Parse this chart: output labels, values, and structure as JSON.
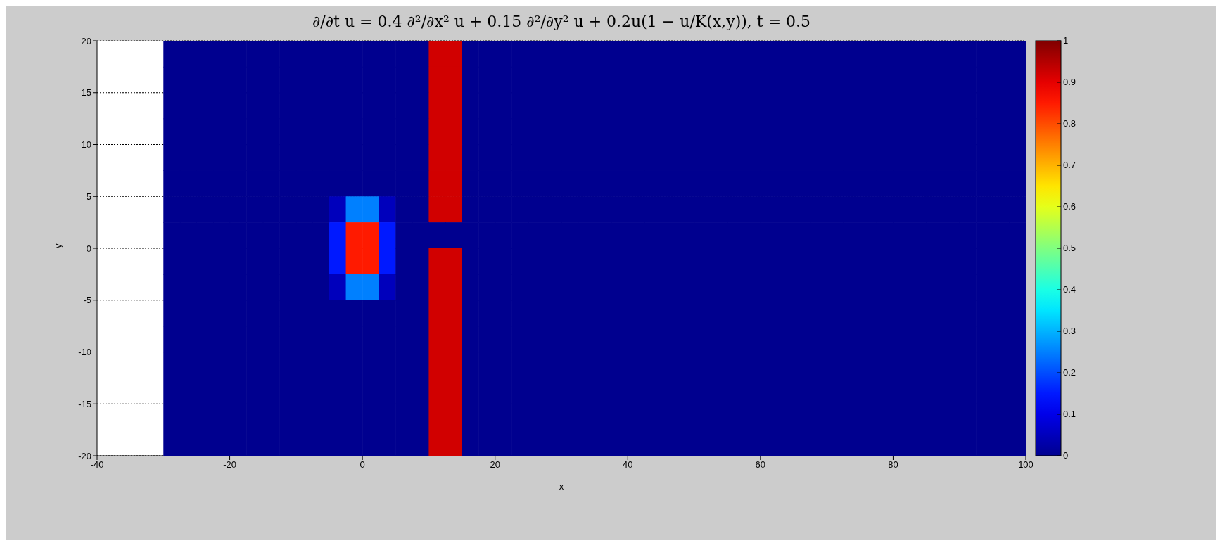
{
  "chart_data": {
    "type": "heatmap",
    "title": "∂/∂t u = 0.4 ∂²/∂x² u + 0.15 ∂²/∂y² u + 0.2u(1 − u/K(x,y)), t = 0.5",
    "xlabel": "x",
    "ylabel": "y",
    "x": [
      -28.75,
      -26.25,
      -23.75,
      -21.25,
      -18.75,
      -16.25,
      -13.75,
      -11.25,
      -8.75,
      -6.25,
      -3.75,
      -1.25,
      1.25,
      3.75,
      6.25,
      8.75,
      11.25,
      13.75,
      16.25,
      18.75,
      21.25,
      23.75,
      26.25,
      28.75,
      31.25,
      33.75,
      36.25,
      38.75,
      41.25,
      43.75,
      46.25,
      48.75,
      51.25,
      53.75,
      56.25,
      58.75,
      61.25,
      63.75,
      66.25,
      68.75,
      71.25,
      73.75,
      76.25,
      78.75,
      81.25,
      83.75,
      86.25,
      88.75,
      91.25,
      93.75,
      96.25,
      98.75
    ],
    "y": [
      18.75,
      16.25,
      13.75,
      11.25,
      8.75,
      6.25,
      3.75,
      1.25,
      -1.25,
      -3.75,
      -6.25,
      -8.75,
      -11.25,
      -13.75,
      -16.25,
      -18.75
    ],
    "xlim": [
      -40,
      100
    ],
    "xticks": [
      -40,
      -20,
      0,
      20,
      40,
      60,
      80,
      100
    ],
    "ylim": [
      -20,
      20
    ],
    "yticks": [
      -20,
      -15,
      -10,
      -5,
      0,
      5,
      10,
      15,
      20
    ],
    "grid": "y",
    "clim": [
      0,
      1
    ],
    "cticks": [
      0,
      0.1,
      0.2,
      0.3,
      0.4,
      0.5,
      0.6,
      0.7,
      0.8,
      0.9,
      1
    ],
    "cells": [
      [
        0,
        0,
        0,
        0,
        0,
        0,
        0,
        0,
        0,
        0,
        0,
        0,
        0,
        0,
        0,
        0,
        0.92,
        0.92,
        0,
        0,
        0,
        0,
        0,
        0,
        0,
        0,
        0,
        0,
        0,
        0,
        0,
        0,
        0,
        0,
        0,
        0,
        0,
        0,
        0,
        0,
        0,
        0,
        0,
        0,
        0,
        0,
        0,
        0,
        0,
        0,
        0,
        0
      ],
      [
        0,
        0,
        0,
        0,
        0,
        0,
        0,
        0,
        0,
        0,
        0,
        0,
        0,
        0,
        0,
        0,
        0.92,
        0.92,
        0,
        0,
        0,
        0,
        0,
        0,
        0,
        0,
        0,
        0,
        0,
        0,
        0,
        0,
        0,
        0,
        0,
        0,
        0,
        0,
        0,
        0,
        0,
        0,
        0,
        0,
        0,
        0,
        0,
        0,
        0,
        0,
        0,
        0
      ],
      [
        0,
        0,
        0,
        0,
        0,
        0,
        0,
        0,
        0,
        0,
        0,
        0,
        0,
        0,
        0,
        0,
        0.92,
        0.92,
        0,
        0,
        0,
        0,
        0,
        0,
        0,
        0,
        0,
        0,
        0,
        0,
        0,
        0,
        0,
        0,
        0,
        0,
        0,
        0,
        0,
        0,
        0,
        0,
        0,
        0,
        0,
        0,
        0,
        0,
        0,
        0,
        0,
        0
      ],
      [
        0,
        0,
        0,
        0,
        0,
        0,
        0,
        0,
        0,
        0,
        0,
        0,
        0,
        0,
        0,
        0,
        0.92,
        0.92,
        0,
        0,
        0,
        0,
        0,
        0,
        0,
        0,
        0,
        0,
        0,
        0,
        0,
        0,
        0,
        0,
        0,
        0,
        0,
        0,
        0,
        0,
        0,
        0,
        0,
        0,
        0,
        0,
        0,
        0,
        0,
        0,
        0,
        0
      ],
      [
        0,
        0,
        0,
        0,
        0,
        0,
        0,
        0,
        0,
        0,
        0,
        0,
        0,
        0,
        0,
        0,
        0.92,
        0.92,
        0,
        0,
        0,
        0,
        0,
        0,
        0,
        0,
        0,
        0,
        0,
        0,
        0,
        0,
        0,
        0,
        0,
        0,
        0,
        0,
        0,
        0,
        0,
        0,
        0,
        0,
        0,
        0,
        0,
        0,
        0,
        0,
        0,
        0
      ],
      [
        0,
        0,
        0,
        0,
        0,
        0,
        0,
        0,
        0,
        0,
        0,
        0,
        0,
        0,
        0,
        0,
        0.92,
        0.92,
        0,
        0,
        0,
        0,
        0,
        0,
        0,
        0,
        0,
        0,
        0,
        0,
        0,
        0,
        0,
        0,
        0,
        0,
        0,
        0,
        0,
        0,
        0,
        0,
        0,
        0,
        0,
        0,
        0,
        0,
        0,
        0,
        0,
        0
      ],
      [
        0,
        0,
        0,
        0,
        0,
        0,
        0,
        0,
        0,
        0,
        0.05,
        0.25,
        0.25,
        0.05,
        0,
        0,
        0.92,
        0.92,
        0,
        0,
        0,
        0,
        0,
        0,
        0,
        0,
        0,
        0,
        0,
        0,
        0,
        0,
        0,
        0,
        0,
        0,
        0,
        0,
        0,
        0,
        0,
        0,
        0,
        0,
        0,
        0,
        0,
        0,
        0,
        0,
        0,
        0
      ],
      [
        0,
        0,
        0,
        0,
        0,
        0,
        0,
        0,
        0,
        0,
        0.15,
        0.85,
        0.85,
        0.15,
        0,
        0,
        0,
        0,
        0,
        0,
        0,
        0,
        0,
        0,
        0,
        0,
        0,
        0,
        0,
        0,
        0,
        0,
        0,
        0,
        0,
        0,
        0,
        0,
        0,
        0,
        0,
        0,
        0,
        0,
        0,
        0,
        0,
        0,
        0,
        0,
        0,
        0
      ],
      [
        0,
        0,
        0,
        0,
        0,
        0,
        0,
        0,
        0,
        0,
        0.15,
        0.85,
        0.85,
        0.15,
        0,
        0,
        0.92,
        0.92,
        0,
        0,
        0,
        0,
        0,
        0,
        0,
        0,
        0,
        0,
        0,
        0,
        0,
        0,
        0,
        0,
        0,
        0,
        0,
        0,
        0,
        0,
        0,
        0,
        0,
        0,
        0,
        0,
        0,
        0,
        0,
        0,
        0,
        0
      ],
      [
        0,
        0,
        0,
        0,
        0,
        0,
        0,
        0,
        0,
        0,
        0.05,
        0.25,
        0.25,
        0.05,
        0,
        0,
        0.92,
        0.92,
        0,
        0,
        0,
        0,
        0,
        0,
        0,
        0,
        0,
        0,
        0,
        0,
        0,
        0,
        0,
        0,
        0,
        0,
        0,
        0,
        0,
        0,
        0,
        0,
        0,
        0,
        0,
        0,
        0,
        0,
        0,
        0,
        0,
        0
      ],
      [
        0,
        0,
        0,
        0,
        0,
        0,
        0,
        0,
        0,
        0,
        0,
        0,
        0,
        0,
        0,
        0,
        0.92,
        0.92,
        0,
        0,
        0,
        0,
        0,
        0,
        0,
        0,
        0,
        0,
        0,
        0,
        0,
        0,
        0,
        0,
        0,
        0,
        0,
        0,
        0,
        0,
        0,
        0,
        0,
        0,
        0,
        0,
        0,
        0,
        0,
        0,
        0,
        0
      ],
      [
        0,
        0,
        0,
        0,
        0,
        0,
        0,
        0,
        0,
        0,
        0,
        0,
        0,
        0,
        0,
        0,
        0.92,
        0.92,
        0,
        0,
        0,
        0,
        0,
        0,
        0,
        0,
        0,
        0,
        0,
        0,
        0,
        0,
        0,
        0,
        0,
        0,
        0,
        0,
        0,
        0,
        0,
        0,
        0,
        0,
        0,
        0,
        0,
        0,
        0,
        0,
        0,
        0
      ],
      [
        0,
        0,
        0,
        0,
        0,
        0,
        0,
        0,
        0,
        0,
        0,
        0,
        0,
        0,
        0,
        0,
        0.92,
        0.92,
        0,
        0,
        0,
        0,
        0,
        0,
        0,
        0,
        0,
        0,
        0,
        0,
        0,
        0,
        0,
        0,
        0,
        0,
        0,
        0,
        0,
        0,
        0,
        0,
        0,
        0,
        0,
        0,
        0,
        0,
        0,
        0,
        0,
        0
      ],
      [
        0,
        0,
        0,
        0,
        0,
        0,
        0,
        0,
        0,
        0,
        0,
        0,
        0,
        0,
        0,
        0,
        0.92,
        0.92,
        0,
        0,
        0,
        0,
        0,
        0,
        0,
        0,
        0,
        0,
        0,
        0,
        0,
        0,
        0,
        0,
        0,
        0,
        0,
        0,
        0,
        0,
        0,
        0,
        0,
        0,
        0,
        0,
        0,
        0,
        0,
        0,
        0,
        0
      ],
      [
        0,
        0,
        0,
        0,
        0,
        0,
        0,
        0,
        0,
        0,
        0,
        0,
        0,
        0,
        0,
        0,
        0.92,
        0.92,
        0,
        0,
        0,
        0,
        0,
        0,
        0,
        0,
        0,
        0,
        0,
        0,
        0,
        0,
        0,
        0,
        0,
        0,
        0,
        0,
        0,
        0,
        0,
        0,
        0,
        0,
        0,
        0,
        0,
        0,
        0,
        0,
        0,
        0
      ],
      [
        0,
        0,
        0,
        0,
        0,
        0,
        0,
        0,
        0,
        0,
        0,
        0,
        0,
        0,
        0,
        0,
        0.92,
        0.92,
        0,
        0,
        0,
        0,
        0,
        0,
        0,
        0,
        0,
        0,
        0,
        0,
        0,
        0,
        0,
        0,
        0,
        0,
        0,
        0,
        0,
        0,
        0,
        0,
        0,
        0,
        0,
        0,
        0,
        0,
        0,
        0,
        0,
        0
      ]
    ]
  }
}
